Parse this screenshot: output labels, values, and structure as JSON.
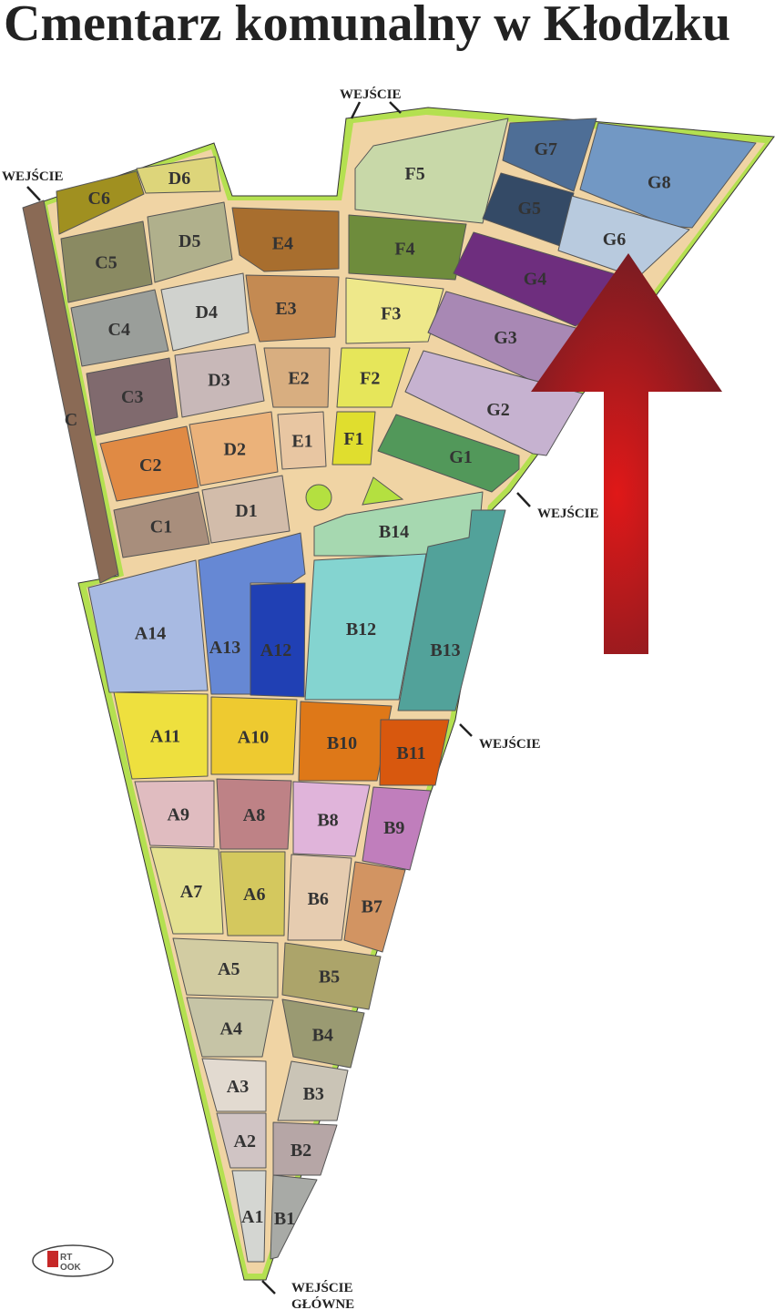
{
  "title": "Cmentarz komunalny w Kłodzku",
  "entrances": {
    "top": "WEJŚCIE",
    "left": "WEJŚCIE",
    "right_upper": "WEJŚCIE",
    "right_lower": "WEJŚCIE",
    "main_line1": "WEJŚCIE",
    "main_line2": "GŁÓWNE"
  },
  "logo_text": "ART LOOK",
  "north_arrow_color": "#b81c1c",
  "sections": [
    {
      "label": "C",
      "color": "#8a6a55"
    },
    {
      "label": "C6",
      "color": "#a09020"
    },
    {
      "label": "D6",
      "color": "#ddd57a"
    },
    {
      "label": "C5",
      "color": "#8a8a62"
    },
    {
      "label": "D5",
      "color": "#b0b08c"
    },
    {
      "label": "C4",
      "color": "#9a9e9a"
    },
    {
      "label": "D4",
      "color": "#d0d2ce"
    },
    {
      "label": "C3",
      "color": "#806a6e"
    },
    {
      "label": "D3",
      "color": "#c8b8b8"
    },
    {
      "label": "C2",
      "color": "#e08a44"
    },
    {
      "label": "D2",
      "color": "#ebb27a"
    },
    {
      "label": "C1",
      "color": "#a88e7c"
    },
    {
      "label": "D1",
      "color": "#d2bcaa"
    },
    {
      "label": "E4",
      "color": "#a86e2e"
    },
    {
      "label": "E3",
      "color": "#c48a52"
    },
    {
      "label": "E2",
      "color": "#d8ae80"
    },
    {
      "label": "E1",
      "color": "#e8c6a2"
    },
    {
      "label": "F5",
      "color": "#c8d8a8"
    },
    {
      "label": "F4",
      "color": "#6e8c3c"
    },
    {
      "label": "F3",
      "color": "#eee88a"
    },
    {
      "label": "F2",
      "color": "#e6e65a"
    },
    {
      "label": "F1",
      "color": "#e0de2e"
    },
    {
      "label": "G7",
      "color": "#4e6e96"
    },
    {
      "label": "G8",
      "color": "#7298c4"
    },
    {
      "label": "G5",
      "color": "#344a66"
    },
    {
      "label": "G6",
      "color": "#b8cade"
    },
    {
      "label": "G4",
      "color": "#6e2e7e"
    },
    {
      "label": "G3",
      "color": "#a888b4"
    },
    {
      "label": "G2",
      "color": "#c6b2d0"
    },
    {
      "label": "G1",
      "color": "#52985a"
    },
    {
      "label": "B14",
      "color": "#a6d8b0"
    },
    {
      "label": "B13",
      "color": "#52a29a"
    },
    {
      "label": "B12",
      "color": "#84d4d0"
    },
    {
      "label": "A14",
      "color": "#a8bae2"
    },
    {
      "label": "A13",
      "color": "#6688d4"
    },
    {
      "label": "A12",
      "color": "#2040b4"
    },
    {
      "label": "A11",
      "color": "#eee03e"
    },
    {
      "label": "A10",
      "color": "#eeca30"
    },
    {
      "label": "B10",
      "color": "#de7818"
    },
    {
      "label": "B11",
      "color": "#d8580e"
    },
    {
      "label": "A9",
      "color": "#e0bcc0"
    },
    {
      "label": "A8",
      "color": "#be8286"
    },
    {
      "label": "B8",
      "color": "#e0b4da"
    },
    {
      "label": "B9",
      "color": "#c07ebc"
    },
    {
      "label": "A7",
      "color": "#e4e090"
    },
    {
      "label": "A6",
      "color": "#d4c85e"
    },
    {
      "label": "B6",
      "color": "#e6ccb0"
    },
    {
      "label": "B7",
      "color": "#d29462"
    },
    {
      "label": "A5",
      "color": "#d2cca2"
    },
    {
      "label": "B5",
      "color": "#aca46a"
    },
    {
      "label": "A4",
      "color": "#c6c4a6"
    },
    {
      "label": "B4",
      "color": "#9a9a72"
    },
    {
      "label": "A3",
      "color": "#e2dad0"
    },
    {
      "label": "B3",
      "color": "#cac4b6"
    },
    {
      "label": "A2",
      "color": "#d0c4c4"
    },
    {
      "label": "B2",
      "color": "#b6a6a6"
    },
    {
      "label": "A1",
      "color": "#d4d6d2"
    },
    {
      "label": "B1",
      "color": "#a8aaa6"
    }
  ]
}
